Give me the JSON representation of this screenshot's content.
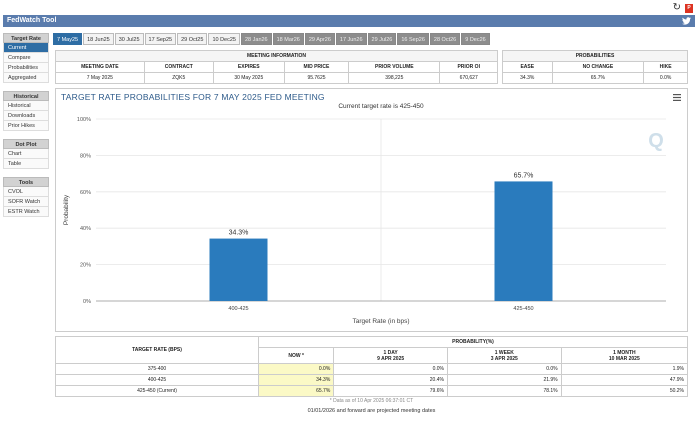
{
  "app": {
    "title": "FedWatch Tool"
  },
  "sidebar": {
    "sections": [
      {
        "header": "Target Rate",
        "items": [
          {
            "label": "Current",
            "active": true
          },
          {
            "label": "Compare"
          },
          {
            "label": "Probabilities"
          },
          {
            "label": "Aggregated"
          }
        ]
      },
      {
        "header": "Historical",
        "items": [
          {
            "label": "Historical"
          },
          {
            "label": "Downloads"
          },
          {
            "label": "Prior Hikes"
          }
        ]
      },
      {
        "header": "Dot Plot",
        "items": [
          {
            "label": "Chart"
          },
          {
            "label": "Table"
          }
        ]
      },
      {
        "header": "Tools",
        "items": [
          {
            "label": "CVOL"
          },
          {
            "label": "SOFR Watch"
          },
          {
            "label": "ESTR Watch"
          }
        ]
      }
    ]
  },
  "date_tabs": [
    {
      "label": "7 May25",
      "state": "active"
    },
    {
      "label": "18 Jun25",
      "state": "normal"
    },
    {
      "label": "30 Jul25",
      "state": "normal"
    },
    {
      "label": "17 Sep25",
      "state": "normal"
    },
    {
      "label": "29 Oct25",
      "state": "normal"
    },
    {
      "label": "10 Dec25",
      "state": "normal"
    },
    {
      "label": "28 Jan26",
      "state": "future"
    },
    {
      "label": "18 Mar26",
      "state": "future"
    },
    {
      "label": "29 Apr26",
      "state": "future"
    },
    {
      "label": "17 Jun26",
      "state": "future"
    },
    {
      "label": "29 Jul26",
      "state": "future"
    },
    {
      "label": "16 Sep26",
      "state": "future"
    },
    {
      "label": "28 Oct26",
      "state": "future"
    },
    {
      "label": "9 Dec26",
      "state": "future"
    }
  ],
  "meeting_info": {
    "header": "MEETING INFORMATION",
    "columns": [
      "MEETING DATE",
      "CONTRACT",
      "EXPIRES",
      "MID PRICE",
      "PRIOR VOLUME",
      "PRIOR OI"
    ],
    "row": [
      "7 May 2025",
      "ZQK5",
      "30 May 2025",
      "95.7625",
      "398,225",
      "670,627"
    ]
  },
  "probabilities": {
    "header": "PROBABILITIES",
    "columns": [
      "EASE",
      "NO CHANGE",
      "HIKE"
    ],
    "row": [
      "34.3%",
      "65.7%",
      "0.0%"
    ]
  },
  "chart": {
    "title": "TARGET RATE PROBABILITIES FOR 7 MAY 2025 FED MEETING",
    "subtitle": "Current target rate is 425-450",
    "colors": {
      "bar": "#2a7bbd",
      "grid": "#e6e6e6"
    }
  },
  "chart_data": {
    "type": "bar",
    "categories": [
      "400-425",
      "425-450"
    ],
    "values": [
      34.3,
      65.7
    ],
    "value_labels": [
      "34.3%",
      "65.7%"
    ],
    "title": "TARGET RATE PROBABILITIES FOR 7 MAY 2025 FED MEETING",
    "subtitle": "Current target rate is 425-450",
    "xlabel": "Target Rate (in bps)",
    "ylabel": "Probability",
    "ylim": [
      0,
      100
    ],
    "yticks": [
      0,
      20,
      40,
      60,
      80,
      100
    ],
    "ytick_labels": [
      "0%",
      "20%",
      "40%",
      "60%",
      "80%",
      "100%"
    ],
    "grid": true
  },
  "history": {
    "title": "PROBABILITY(%)",
    "row_header": "TARGET RATE (BPS)",
    "col_headers": [
      {
        "line1": "NOW *",
        "line2": ""
      },
      {
        "line1": "1 DAY",
        "line2": "9 APR 2025"
      },
      {
        "line1": "1 WEEK",
        "line2": "3 APR 2025"
      },
      {
        "line1": "1 MONTH",
        "line2": "10 MAR 2025"
      }
    ],
    "rows": [
      {
        "label": "375-400",
        "values": [
          "0.0%",
          "0.0%",
          "0.0%",
          "1.9%"
        ]
      },
      {
        "label": "400-425",
        "values": [
          "34.3%",
          "20.4%",
          "21.9%",
          "47.9%"
        ]
      },
      {
        "label": "425-450 (Current)",
        "values": [
          "65.7%",
          "79.6%",
          "78.1%",
          "50.2%"
        ]
      }
    ],
    "note": "* Data as of 10 Apr 2025 06:37:01 CT"
  },
  "footnote": "01/01/2026 and forward are projected meeting dates"
}
